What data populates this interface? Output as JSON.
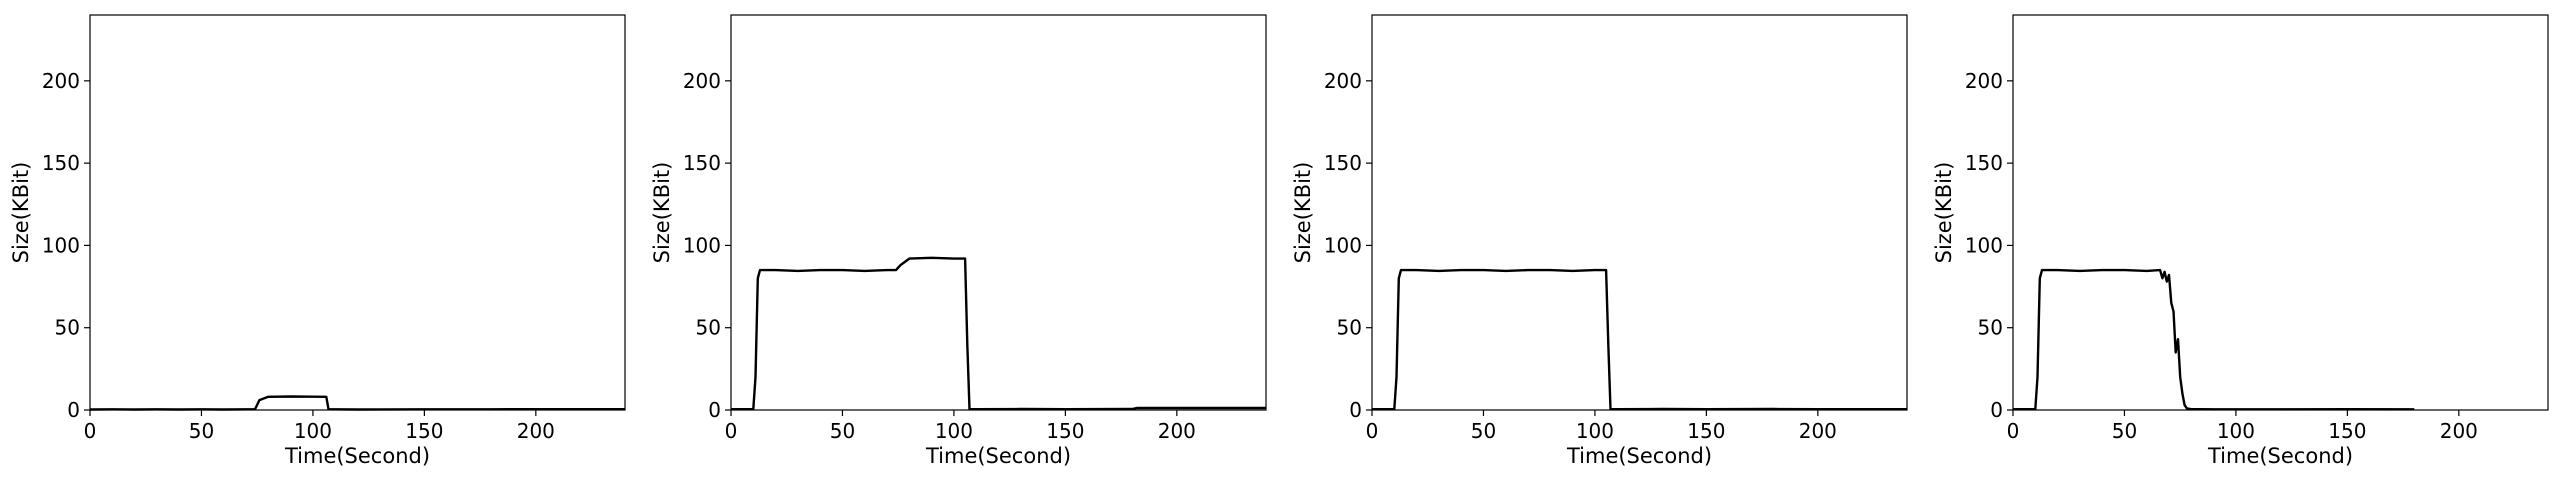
{
  "chart_data": [
    {
      "type": "line",
      "title": "",
      "xlabel": "Time(Second)",
      "ylabel": "Size(KBit)",
      "xlim": [
        0,
        240
      ],
      "ylim": [
        0,
        240
      ],
      "xticks": [
        0,
        50,
        100,
        150,
        200
      ],
      "yticks": [
        0,
        50,
        100,
        150,
        200
      ],
      "grid": false,
      "series": [
        {
          "color": "#000000",
          "x": [
            0,
            10,
            20,
            30,
            40,
            50,
            60,
            70,
            74,
            76,
            80,
            90,
            100,
            106,
            107,
            110,
            120,
            150,
            180,
            200,
            240
          ],
          "y": [
            0.3,
            0.4,
            0.3,
            0.4,
            0.3,
            0.4,
            0.3,
            0.4,
            0.4,
            6,
            8,
            8.2,
            8.1,
            8,
            0.5,
            0.4,
            0.3,
            0.4,
            0.4,
            0.5,
            0.5
          ]
        }
      ]
    },
    {
      "type": "line",
      "title": "",
      "xlabel": "Time(Second)",
      "ylabel": "Size(KBit)",
      "xlim": [
        0,
        240
      ],
      "ylim": [
        0,
        240
      ],
      "xticks": [
        0,
        50,
        100,
        150,
        200
      ],
      "yticks": [
        0,
        50,
        100,
        150,
        200
      ],
      "grid": false,
      "series": [
        {
          "color": "#000000",
          "x": [
            0,
            10,
            11,
            12,
            13,
            20,
            30,
            40,
            50,
            60,
            70,
            74,
            76,
            80,
            90,
            100,
            105,
            106,
            107,
            110,
            130,
            150,
            180,
            182,
            200,
            240
          ],
          "y": [
            0.5,
            0.5,
            20,
            80,
            85,
            85,
            84.5,
            85,
            85,
            84.5,
            85,
            85,
            88,
            92,
            92.5,
            92,
            92,
            40,
            0.5,
            0.5,
            0.6,
            0.5,
            0.6,
            1.2,
            1.2,
            1.2
          ]
        }
      ]
    },
    {
      "type": "line",
      "title": "",
      "xlabel": "Time(Second)",
      "ylabel": "Size(KBit)",
      "xlim": [
        0,
        240
      ],
      "ylim": [
        0,
        240
      ],
      "xticks": [
        0,
        50,
        100,
        150,
        200
      ],
      "yticks": [
        0,
        50,
        100,
        150,
        200
      ],
      "grid": false,
      "series": [
        {
          "color": "#000000",
          "x": [
            0,
            10,
            11,
            12,
            13,
            20,
            30,
            40,
            50,
            60,
            70,
            80,
            90,
            100,
            105,
            106,
            107,
            110,
            130,
            150,
            180,
            200,
            240
          ],
          "y": [
            0.5,
            0.5,
            20,
            80,
            85,
            85,
            84.5,
            85,
            85,
            84.5,
            85,
            85,
            84.5,
            85,
            85,
            40,
            0.5,
            0.5,
            0.6,
            0.5,
            0.6,
            0.5,
            0.5
          ]
        }
      ]
    },
    {
      "type": "line",
      "title": "",
      "xlabel": "Time(Second)",
      "ylabel": "Size(KBit)",
      "xlim": [
        0,
        240
      ],
      "ylim": [
        0,
        240
      ],
      "xticks": [
        0,
        50,
        100,
        150,
        200
      ],
      "yticks": [
        0,
        50,
        100,
        150,
        200
      ],
      "grid": false,
      "series": [
        {
          "color": "#000000",
          "x": [
            0,
            10,
            11,
            12,
            13,
            20,
            30,
            40,
            50,
            60,
            66,
            67,
            68,
            69,
            70,
            71,
            72,
            73,
            74,
            75,
            76,
            77,
            78,
            80,
            85,
            90,
            120,
            150,
            180
          ],
          "y": [
            0.5,
            0.5,
            20,
            80,
            85,
            85,
            84.5,
            85,
            85,
            84.5,
            85,
            80,
            84,
            78,
            82,
            65,
            60,
            35,
            43,
            20,
            10,
            3,
            1,
            0.5,
            0.5,
            0.4,
            0.4,
            0.5,
            0.4
          ]
        }
      ]
    }
  ]
}
